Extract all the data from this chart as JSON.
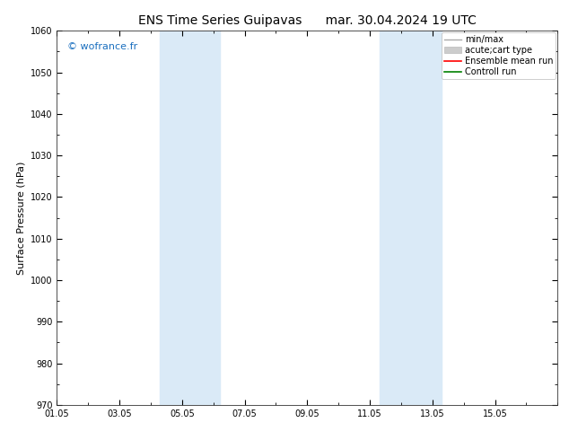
{
  "title_left": "ENS Time Series Guipavas",
  "title_right": "mar. 30.04.2024 19 UTC",
  "ylabel": "Surface Pressure (hPa)",
  "ylim": [
    970,
    1060
  ],
  "yticks": [
    970,
    980,
    990,
    1000,
    1010,
    1020,
    1030,
    1040,
    1050,
    1060
  ],
  "xlim_days": [
    0,
    16
  ],
  "xtick_labels": [
    "01.05",
    "03.05",
    "05.05",
    "07.05",
    "09.05",
    "11.05",
    "13.05",
    "15.05"
  ],
  "xtick_positions": [
    0,
    2,
    4,
    6,
    8,
    10,
    12,
    14
  ],
  "shaded_bands": [
    {
      "xmin": 3.3,
      "xmax": 5.2
    },
    {
      "xmin": 10.3,
      "xmax": 12.3
    }
  ],
  "shade_color": "#daeaf7",
  "watermark": "© wofrance.fr",
  "watermark_color": "#1a6fbf",
  "legend_entries": [
    {
      "label": "min/max",
      "color": "#aaaaaa",
      "lw": 1.0
    },
    {
      "label": "acute;cart type",
      "color": "#cccccc",
      "lw": 4
    },
    {
      "label": "Ensemble mean run",
      "color": "#ff0000",
      "lw": 1.2
    },
    {
      "label": "Controll run",
      "color": "#008000",
      "lw": 1.2
    }
  ],
  "bg_color": "#ffffff",
  "title_fontsize": 10,
  "axis_label_fontsize": 8,
  "tick_fontsize": 7,
  "watermark_fontsize": 8,
  "legend_fontsize": 7
}
